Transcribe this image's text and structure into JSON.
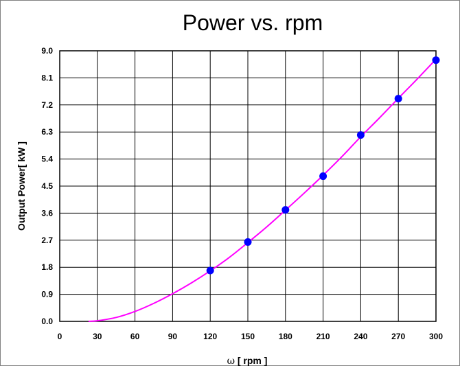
{
  "chart_data": {
    "type": "scatter",
    "title": "Power vs. rpm",
    "xlabel_symbol": "ω",
    "xlabel": " [ rpm ]",
    "ylabel": "Output Power[ kW ]",
    "xlim": [
      0,
      300
    ],
    "ylim": [
      0,
      9.0
    ],
    "x_ticks": [
      "0",
      "30",
      "60",
      "90",
      "120",
      "150",
      "180",
      "210",
      "240",
      "270",
      "300"
    ],
    "y_ticks": [
      "0.0",
      "0.9",
      "1.8",
      "2.7",
      "3.6",
      "4.5",
      "5.4",
      "6.3",
      "7.2",
      "8.1",
      "9.0"
    ],
    "grid": true,
    "series": [
      {
        "kind": "points",
        "color": "#0000ff",
        "x": [
          120,
          150,
          180,
          210,
          240,
          270,
          300
        ],
        "y": [
          1.69,
          2.64,
          3.71,
          4.83,
          6.2,
          7.41,
          8.69
        ]
      },
      {
        "kind": "fit-curve",
        "color": "#ff00ff",
        "x": [
          23,
          30,
          45,
          60,
          75,
          90,
          105,
          120,
          135,
          150,
          165,
          180,
          195,
          210,
          225,
          240,
          255,
          270,
          285,
          300
        ],
        "y": [
          0.0,
          0.02,
          0.13,
          0.33,
          0.6,
          0.92,
          1.28,
          1.68,
          2.12,
          2.62,
          3.14,
          3.7,
          4.27,
          4.86,
          5.48,
          6.14,
          6.77,
          7.42,
          8.06,
          8.72
        ]
      }
    ]
  }
}
